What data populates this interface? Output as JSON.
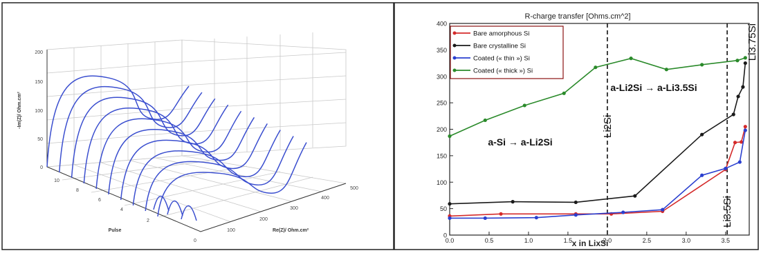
{
  "left_panel": {
    "z_label": "-Im(Z)/ Ohm.cm²",
    "x_label": "Re(Z)/ Ohm.cm²",
    "y_label": "Pulse",
    "z_ticks": [
      "0",
      "50",
      "100",
      "150",
      "200"
    ],
    "x_ticks": [
      "0",
      "100",
      "200",
      "300",
      "400",
      "500"
    ],
    "y_ticks": [
      "2",
      "4",
      "6",
      "8",
      "10"
    ],
    "line_color": "#3a4ecf"
  },
  "chart_data": {
    "type": "line",
    "title": "R-charge transfer [Ohms.cm^2]",
    "xlabel": "x in LixSi",
    "ylabel": "",
    "xlim": [
      0,
      3.8
    ],
    "ylim": [
      0,
      400
    ],
    "xticks": [
      "0.0",
      "0.5",
      "1.0",
      "1.5",
      "2.0",
      "2.5",
      "3.0",
      "3.5"
    ],
    "yticks": [
      "0",
      "50",
      "100",
      "150",
      "200",
      "250",
      "300",
      "350",
      "400"
    ],
    "grid": false,
    "legend_position": "top-left",
    "series": [
      {
        "name": "Bare amorphous Si",
        "color": "#d42a2a",
        "points": [
          [
            0.0,
            36
          ],
          [
            0.65,
            40
          ],
          [
            1.6,
            40
          ],
          [
            2.05,
            40
          ],
          [
            2.7,
            45
          ],
          [
            3.5,
            124
          ],
          [
            3.62,
            175
          ],
          [
            3.7,
            176
          ],
          [
            3.75,
            205
          ]
        ]
      },
      {
        "name": "Bare crystalline Si",
        "color": "#1a1a1a",
        "points": [
          [
            0.0,
            59
          ],
          [
            0.8,
            63
          ],
          [
            1.6,
            62
          ],
          [
            2.35,
            74
          ],
          [
            3.2,
            190
          ],
          [
            3.6,
            228
          ],
          [
            3.66,
            262
          ],
          [
            3.72,
            280
          ],
          [
            3.75,
            325
          ]
        ]
      },
      {
        "name": "Coated (« thin ») Si",
        "color": "#2a3fcf",
        "points": [
          [
            0.0,
            32
          ],
          [
            0.45,
            32
          ],
          [
            1.1,
            33
          ],
          [
            1.6,
            38
          ],
          [
            2.2,
            43
          ],
          [
            2.7,
            48
          ],
          [
            3.2,
            113
          ],
          [
            3.5,
            126
          ],
          [
            3.68,
            138
          ],
          [
            3.75,
            198
          ]
        ]
      },
      {
        "name": "Coated (« thick ») Si",
        "color": "#2a8a2a",
        "points": [
          [
            0.0,
            187
          ],
          [
            0.45,
            217
          ],
          [
            0.95,
            245
          ],
          [
            1.45,
            268
          ],
          [
            1.85,
            317
          ],
          [
            2.3,
            334
          ],
          [
            2.75,
            313
          ],
          [
            3.2,
            322
          ],
          [
            3.65,
            330
          ],
          [
            3.75,
            335
          ]
        ]
      }
    ],
    "vlines": [
      {
        "x": 2.0,
        "label": "Li2Si"
      },
      {
        "x": 3.52,
        "label": "Li3.5Si"
      }
    ],
    "annotations": [
      {
        "text": "a-Si → a-Li2Si"
      },
      {
        "text": "a-Li2Si → a-Li3.5Si"
      },
      {
        "text": "Li3.75Si"
      }
    ]
  }
}
